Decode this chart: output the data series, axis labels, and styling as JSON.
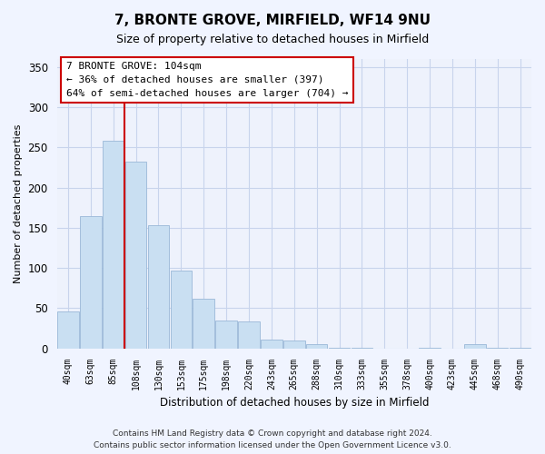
{
  "title": "7, BRONTE GROVE, MIRFIELD, WF14 9NU",
  "subtitle": "Size of property relative to detached houses in Mirfield",
  "xlabel": "Distribution of detached houses by size in Mirfield",
  "ylabel": "Number of detached properties",
  "categories": [
    "40sqm",
    "63sqm",
    "85sqm",
    "108sqm",
    "130sqm",
    "153sqm",
    "175sqm",
    "198sqm",
    "220sqm",
    "243sqm",
    "265sqm",
    "288sqm",
    "310sqm",
    "333sqm",
    "355sqm",
    "378sqm",
    "400sqm",
    "423sqm",
    "445sqm",
    "468sqm",
    "490sqm"
  ],
  "values": [
    46,
    165,
    258,
    232,
    153,
    97,
    62,
    35,
    34,
    11,
    10,
    5,
    1,
    1,
    0,
    0,
    1,
    0,
    5,
    1,
    1
  ],
  "bar_color": "#c9dff2",
  "bar_edgecolor": "#9ab8d8",
  "vline_index": 3,
  "vline_color": "#cc0000",
  "annotation_title": "7 BRONTE GROVE: 104sqm",
  "annotation_line1": "← 36% of detached houses are smaller (397)",
  "annotation_line2": "64% of semi-detached houses are larger (704) →",
  "ylim": [
    0,
    360
  ],
  "yticks": [
    0,
    50,
    100,
    150,
    200,
    250,
    300,
    350
  ],
  "footer_line1": "Contains HM Land Registry data © Crown copyright and database right 2024.",
  "footer_line2": "Contains public sector information licensed under the Open Government Licence v3.0.",
  "background_color": "#f0f4ff",
  "plot_bg_color": "#eef2fc",
  "grid_color": "#c8d4ec"
}
